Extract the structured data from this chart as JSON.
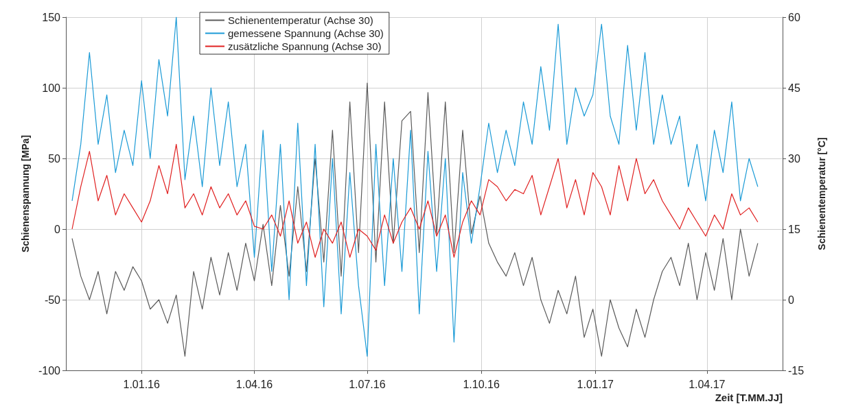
{
  "chart_data": {
    "type": "line",
    "xlabel": "Zeit [T.MM.JJ]",
    "ylabel": "Schienenspannung [MPa]",
    "y2label": "Schienentemperatur [°C]",
    "x": [
      "2015-11-06",
      "2015-11-13",
      "2015-11-20",
      "2015-11-27",
      "2015-12-04",
      "2015-12-11",
      "2015-12-18",
      "2015-12-25",
      "2016-01-01",
      "2016-01-08",
      "2016-01-15",
      "2016-01-22",
      "2016-01-29",
      "2016-02-05",
      "2016-02-12",
      "2016-02-19",
      "2016-02-26",
      "2016-03-04",
      "2016-03-11",
      "2016-03-18",
      "2016-03-25",
      "2016-04-01",
      "2016-04-08",
      "2016-04-15",
      "2016-04-22",
      "2016-04-29",
      "2016-05-06",
      "2016-05-13",
      "2016-05-20",
      "2016-05-27",
      "2016-06-03",
      "2016-06-10",
      "2016-06-17",
      "2016-06-24",
      "2016-07-01",
      "2016-07-08",
      "2016-07-15",
      "2016-07-22",
      "2016-07-29",
      "2016-08-05",
      "2016-08-12",
      "2016-08-19",
      "2016-08-26",
      "2016-09-02",
      "2016-09-09",
      "2016-09-16",
      "2016-09-23",
      "2016-09-30",
      "2016-10-07",
      "2016-10-14",
      "2016-10-21",
      "2016-10-28",
      "2016-11-04",
      "2016-11-11",
      "2016-11-18",
      "2016-11-25",
      "2016-12-02",
      "2016-12-09",
      "2016-12-16",
      "2016-12-23",
      "2016-12-30",
      "2017-01-06",
      "2017-01-13",
      "2017-01-20",
      "2017-01-27",
      "2017-02-03",
      "2017-02-10",
      "2017-02-17",
      "2017-02-24",
      "2017-03-03",
      "2017-03-10",
      "2017-03-17",
      "2017-03-24",
      "2017-03-31",
      "2017-04-07",
      "2017-04-14",
      "2017-04-21",
      "2017-04-28",
      "2017-05-05",
      "2017-05-12"
    ],
    "series": [
      {
        "name": "Schienentemperatur (Achse 30)",
        "color": "#5a5a5a",
        "axis": "y2",
        "values": [
          13,
          5,
          0,
          6,
          -3,
          6,
          2,
          7,
          4,
          -2,
          0,
          -5,
          1,
          -12,
          6,
          -2,
          9,
          1,
          10,
          2,
          12,
          4,
          16,
          3,
          20,
          5,
          24,
          6,
          30,
          8,
          36,
          5,
          42,
          10,
          46,
          8,
          42,
          12,
          38,
          40,
          10,
          44,
          14,
          42,
          10,
          36,
          14,
          22,
          12,
          8,
          5,
          10,
          3,
          9,
          0,
          -5,
          2,
          -3,
          5,
          -8,
          -2,
          -12,
          0,
          -6,
          -10,
          -2,
          -8,
          0,
          6,
          9,
          3,
          12,
          0,
          10,
          2,
          13,
          0,
          15,
          5,
          12
        ]
      },
      {
        "name": "gemessene Spannung (Achse 30)",
        "color": "#1a9ad6",
        "values": [
          20,
          60,
          125,
          60,
          95,
          40,
          70,
          45,
          105,
          50,
          120,
          80,
          150,
          35,
          80,
          30,
          100,
          45,
          90,
          30,
          60,
          -20,
          70,
          -30,
          60,
          -50,
          75,
          -40,
          60,
          -55,
          50,
          -60,
          40,
          -40,
          -90,
          60,
          -40,
          50,
          -30,
          70,
          -60,
          55,
          -30,
          50,
          -80,
          40,
          -10,
          30,
          75,
          40,
          70,
          45,
          90,
          60,
          115,
          70,
          145,
          60,
          100,
          80,
          95,
          145,
          80,
          60,
          130,
          70,
          125,
          60,
          95,
          60,
          80,
          30,
          60,
          20,
          70,
          40,
          90,
          20,
          50,
          30
        ]
      },
      {
        "name": "zusätzliche Spannung (Achse 30)",
        "color": "#e02020",
        "values": [
          0,
          30,
          55,
          20,
          38,
          10,
          25,
          15,
          5,
          20,
          45,
          25,
          60,
          15,
          25,
          10,
          30,
          15,
          25,
          10,
          20,
          2,
          0,
          10,
          -5,
          20,
          -10,
          5,
          -20,
          0,
          -10,
          5,
          -20,
          0,
          -5,
          -15,
          10,
          -10,
          5,
          15,
          0,
          20,
          -5,
          10,
          -20,
          5,
          20,
          10,
          35,
          30,
          20,
          28,
          25,
          38,
          10,
          30,
          50,
          15,
          35,
          10,
          40,
          30,
          10,
          45,
          20,
          50,
          25,
          35,
          20,
          10,
          0,
          15,
          5,
          -5,
          10,
          0,
          25,
          10,
          15,
          5
        ]
      }
    ],
    "xlim": [
      "2015-11-01",
      "2017-06-01"
    ],
    "xticks": [
      {
        "value": "2016-01-01",
        "label": "1.01.16"
      },
      {
        "value": "2016-04-01",
        "label": "1.04.16"
      },
      {
        "value": "2016-07-01",
        "label": "1.07.16"
      },
      {
        "value": "2016-10-01",
        "label": "1.10.16"
      },
      {
        "value": "2017-01-01",
        "label": "1.01.17"
      },
      {
        "value": "2017-04-01",
        "label": "1.04.17"
      }
    ],
    "ylim": [
      -100,
      150
    ],
    "yticks": [
      -100,
      -50,
      0,
      50,
      100,
      150
    ],
    "y2lim": [
      -15,
      60
    ],
    "y2ticks": [
      -15,
      0,
      15,
      30,
      45,
      60
    ],
    "grid": true,
    "legend": "top",
    "marker": "none",
    "line_style": "solid"
  }
}
